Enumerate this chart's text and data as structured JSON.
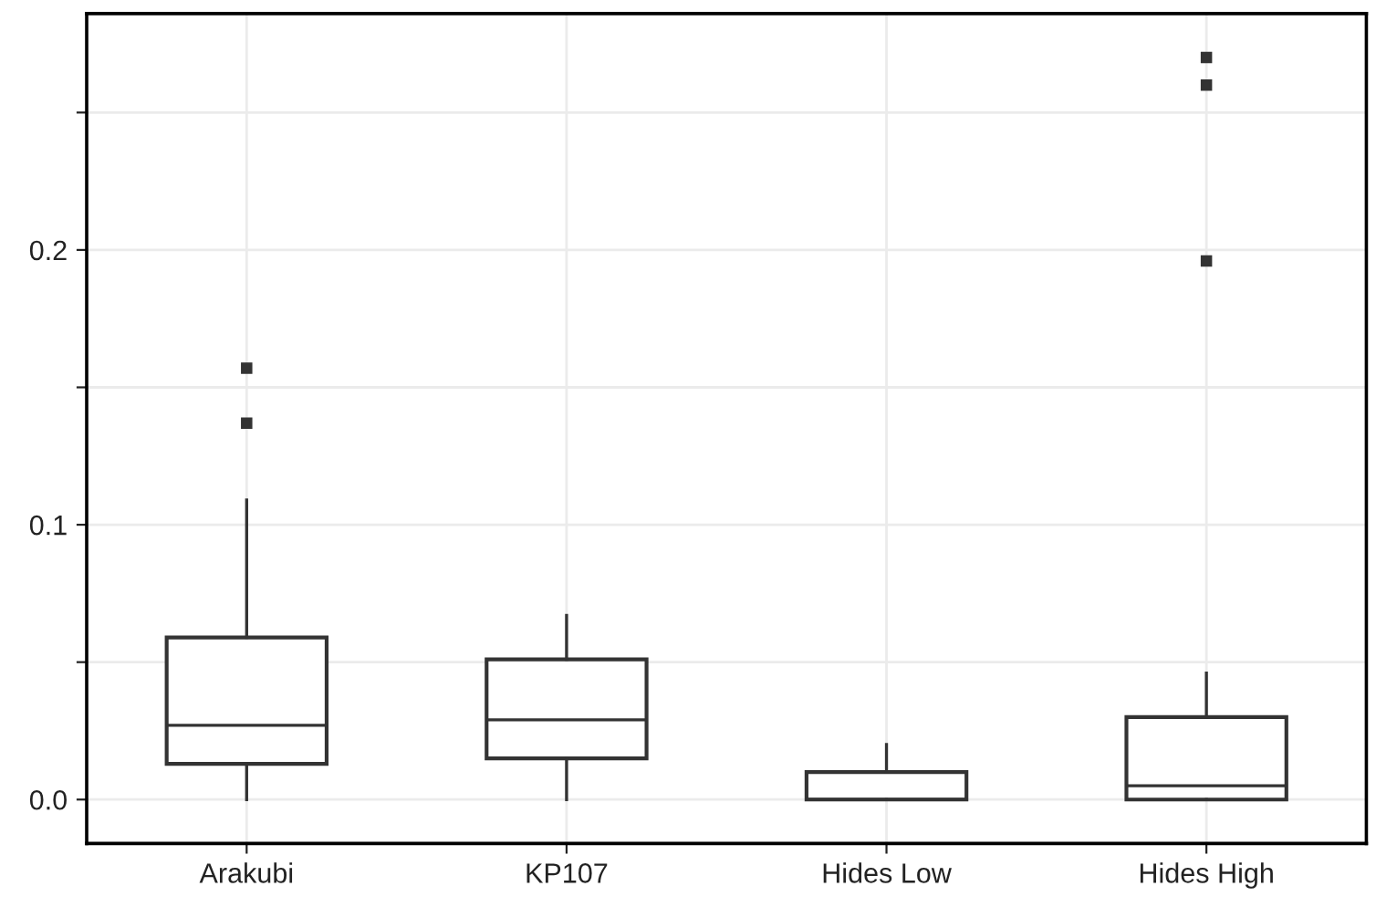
{
  "chart_data": {
    "type": "box",
    "categories": [
      "Arakubi",
      "KP107",
      "Hides Low",
      "Hides High"
    ],
    "boxes": [
      {
        "low": 0.0,
        "q1": 0.013,
        "median": 0.027,
        "q3": 0.059,
        "high": 0.109,
        "outliers": [
          0.137,
          0.157
        ]
      },
      {
        "low": 0.0,
        "q1": 0.015,
        "median": 0.029,
        "q3": 0.051,
        "high": 0.067
      },
      {
        "low": 0.0,
        "q1": 0.0,
        "median": 0.0,
        "q3": 0.01,
        "high": 0.02
      },
      {
        "low": 0.0,
        "q1": 0.0,
        "median": 0.005,
        "q3": 0.03,
        "high": 0.046,
        "outliers": [
          0.196,
          0.26,
          0.27
        ]
      }
    ],
    "color": "#333333",
    "ylim": [
      -0.016,
      0.286
    ],
    "yticks": [
      {
        "value": 0.0,
        "label": "0.0"
      },
      {
        "value": 0.05,
        "label": null
      },
      {
        "value": 0.1,
        "label": "0.1"
      },
      {
        "value": 0.15,
        "label": null
      },
      {
        "value": 0.2,
        "label": "0.2"
      },
      {
        "value": 0.25,
        "label": null
      }
    ],
    "grid": true,
    "marker": "square"
  }
}
